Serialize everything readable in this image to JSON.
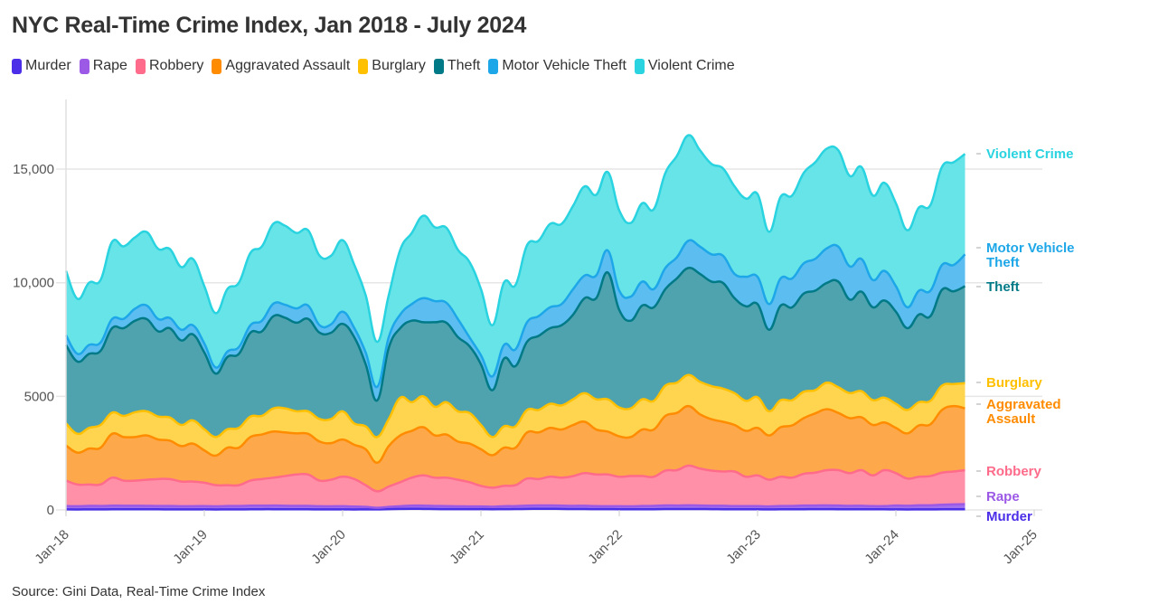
{
  "title": "NYC Real-Time Crime Index, Jan 2018 - July 2024",
  "source": "Source: Gini Data, Real-Time Crime Index",
  "chart_data": {
    "type": "area",
    "stacked": true,
    "title": "NYC Real-Time Crime Index, Jan 2018 - July 2024",
    "xlabel": "",
    "ylabel": "",
    "x_start": "2018-01",
    "x_end": "2024-07",
    "x_frequency": "monthly",
    "xlim": [
      "2018-01",
      "2025-01"
    ],
    "ylim": [
      0,
      18000
    ],
    "x_ticks": [
      "Jan-18",
      "Jan-19",
      "Jan-20",
      "Jan-21",
      "Jan-22",
      "Jan-23",
      "Jan-24",
      "Jan-25"
    ],
    "y_ticks": [
      "0",
      "5000",
      "10,000",
      "15,000"
    ],
    "y_tick_values": [
      0,
      5000,
      10000,
      15000
    ],
    "grid": "horizontal",
    "legend": "top",
    "series": [
      {
        "name": "Murder",
        "color": "#4a2ee8",
        "fill": "#5a3cf0",
        "values": [
          25,
          22,
          25,
          25,
          28,
          30,
          30,
          30,
          28,
          25,
          25,
          25,
          25,
          22,
          25,
          25,
          28,
          32,
          32,
          30,
          28,
          28,
          25,
          25,
          25,
          22,
          25,
          25,
          35,
          45,
          50,
          45,
          40,
          35,
          35,
          35,
          35,
          30,
          35,
          38,
          45,
          50,
          50,
          45,
          40,
          38,
          35,
          35,
          30,
          28,
          30,
          32,
          38,
          40,
          42,
          40,
          35,
          32,
          30,
          32,
          28,
          25,
          28,
          28,
          32,
          35,
          35,
          32,
          30,
          30,
          28,
          28,
          25,
          22,
          25,
          25,
          30,
          32,
          32
        ]
      },
      {
        "name": "Rape",
        "color": "#9b59e6",
        "fill": "#a070ee",
        "values": [
          150,
          140,
          155,
          150,
          160,
          155,
          155,
          150,
          145,
          150,
          140,
          140,
          145,
          135,
          150,
          150,
          160,
          155,
          160,
          155,
          150,
          150,
          140,
          135,
          140,
          125,
          110,
          70,
          100,
          120,
          140,
          145,
          135,
          135,
          125,
          120,
          120,
          110,
          130,
          130,
          145,
          150,
          150,
          145,
          140,
          145,
          135,
          130,
          135,
          130,
          145,
          145,
          160,
          155,
          160,
          155,
          150,
          150,
          140,
          135,
          140,
          130,
          145,
          145,
          160,
          160,
          165,
          160,
          150,
          155,
          140,
          140,
          170,
          160,
          180,
          180,
          200,
          210,
          220
        ]
      },
      {
        "name": "Robbery",
        "color": "#ff6b8a",
        "fill": "#ff90a8",
        "values": [
          1115,
          958,
          940,
          945,
          1232,
          1105,
          1105,
          1150,
          1187,
          1185,
          1085,
          1085,
          1030,
          933,
          915,
          915,
          1102,
          1173,
          1228,
          1305,
          1382,
          1382,
          1125,
          1170,
          1295,
          1213,
          955,
          725,
          895,
          1055,
          1230,
          1330,
          1245,
          1250,
          1170,
          1065,
          905,
          840,
          895,
          922,
          1190,
          1160,
          1260,
          1230,
          1310,
          1437,
          1390,
          1395,
          1295,
          1332,
          1315,
          1283,
          1532,
          1555,
          1748,
          1625,
          1545,
          1508,
          1520,
          1293,
          1352,
          1175,
          1287,
          1247,
          1398,
          1445,
          1550,
          1558,
          1440,
          1565,
          1352,
          1582,
          1425,
          1198,
          1255,
          1285,
          1410,
          1448,
          1498
        ]
      },
      {
        "name": "Aggravated Assault",
        "color": "#ff8c00",
        "fill": "#fda84a",
        "values": [
          1550,
          1400,
          1580,
          1620,
          1930,
          1920,
          1920,
          1950,
          1740,
          1690,
          1560,
          1670,
          1420,
          1300,
          1650,
          1650,
          1920,
          1960,
          2030,
          1920,
          1810,
          1790,
          1720,
          1610,
          1640,
          1510,
          1580,
          1260,
          1780,
          2060,
          2060,
          2120,
          1860,
          1900,
          1680,
          1700,
          1610,
          1430,
          1680,
          1650,
          2030,
          2050,
          2150,
          2120,
          2250,
          2260,
          1980,
          1890,
          1780,
          1720,
          2050,
          2080,
          2410,
          2520,
          2620,
          2390,
          2260,
          2190,
          2050,
          2020,
          2090,
          1950,
          2180,
          2300,
          2450,
          2610,
          2680,
          2520,
          2420,
          2330,
          2220,
          2100,
          1990,
          1990,
          2260,
          2280,
          2760,
          2880,
          2720
        ]
      },
      {
        "name": "Burglary",
        "color": "#ffc000",
        "fill": "#ffd54f",
        "values": [
          970,
          830,
          910,
          1000,
          930,
          930,
          1090,
          1060,
          1010,
          1020,
          930,
          1020,
          930,
          820,
          810,
          870,
          900,
          820,
          1020,
          1060,
          970,
          990,
          990,
          1060,
          1240,
          940,
          1010,
          1130,
          1190,
          1660,
          1260,
          1360,
          1260,
          1420,
          1330,
          1350,
          1070,
          800,
          940,
          940,
          990,
          990,
          1060,
          1060,
          1130,
          1260,
          1330,
          1420,
          1270,
          1260,
          1330,
          1260,
          1330,
          1330,
          1370,
          1430,
          1460,
          1460,
          1400,
          1320,
          1350,
          1060,
          1190,
          1110,
          1160,
          1020,
          1170,
          1130,
          1100,
          1150,
          1090,
          1090,
          1060,
          1030,
          1020,
          1030,
          1070,
          970,
          1110
        ]
      },
      {
        "name": "Theft",
        "color": "#007a87",
        "fill": "#4ea3ae",
        "values": [
          3450,
          3180,
          3260,
          3260,
          3720,
          3860,
          4030,
          4060,
          3750,
          3930,
          3720,
          3790,
          3380,
          2790,
          3180,
          3260,
          3690,
          3720,
          4060,
          3990,
          3900,
          4070,
          3800,
          3800,
          3850,
          3800,
          2730,
          1610,
          3130,
          3060,
          3590,
          3260,
          3720,
          3500,
          3270,
          2940,
          2670,
          2060,
          2980,
          2650,
          3000,
          3260,
          3330,
          3530,
          3730,
          4180,
          4450,
          5580,
          4290,
          3860,
          4130,
          4120,
          4250,
          4590,
          4710,
          4750,
          4600,
          4650,
          4180,
          4160,
          4100,
          3590,
          4160,
          4090,
          4320,
          4380,
          4390,
          4650,
          4120,
          4380,
          4090,
          4280,
          4055,
          3600,
          3860,
          3730,
          4220,
          4080,
          4270
        ]
      },
      {
        "name": "Motor Vehicle Theft",
        "color": "#1ea7e8",
        "fill": "#5bbdf0",
        "values": [
          430,
          340,
          390,
          370,
          400,
          410,
          530,
          600,
          540,
          450,
          470,
          400,
          400,
          270,
          240,
          300,
          330,
          470,
          550,
          570,
          630,
          590,
          330,
          370,
          535,
          410,
          520,
          600,
          470,
          600,
          730,
          1060,
          930,
          880,
          790,
          390,
          400,
          610,
          600,
          740,
          860,
          870,
          920,
          930,
          1120,
          1000,
          1000,
          970,
          850,
          1060,
          1050,
          800,
          930,
          930,
          1200,
          1200,
          1200,
          1200,
          1070,
          1300,
          1200,
          1130,
          1200,
          1270,
          1330,
          1400,
          1520,
          1540,
          1460,
          1440,
          1200,
          1300,
          1125,
          920,
          1050,
          1120,
          1090,
          1160,
          1400
        ]
      },
      {
        "name": "Violent Crime",
        "color": "#29d3e0",
        "fill": "#67e4e8",
        "values": [
          2830,
          2420,
          2740,
          2750,
          3400,
          3190,
          3140,
          3230,
          3090,
          3040,
          2760,
          2920,
          2520,
          2390,
          2750,
          2830,
          3180,
          3270,
          3520,
          3480,
          3320,
          3310,
          3060,
          3020,
          3145,
          2780,
          2520,
          1980,
          1850,
          2850,
          3130,
          3630,
          3250,
          3300,
          3050,
          3320,
          2910,
          2250,
          2750,
          2830,
          3390,
          3320,
          3670,
          3530,
          3670,
          3920,
          3550,
          3450,
          3530,
          3240,
          3450,
          3520,
          4180,
          4460,
          4640,
          4240,
          3980,
          3840,
          3850,
          3440,
          3640,
          3180,
          3590,
          3650,
          3980,
          4250,
          4390,
          4240,
          3980,
          4050,
          3720,
          3880,
          3650,
          3390,
          3660,
          3770,
          4320,
          4520,
          4420
        ]
      }
    ],
    "end_labels": [
      "Murder",
      "Rape",
      "Robbery",
      "Aggravated\nAssault",
      "Burglary",
      "Theft",
      "Motor Vehicle\nTheft",
      "Violent Crime"
    ]
  }
}
